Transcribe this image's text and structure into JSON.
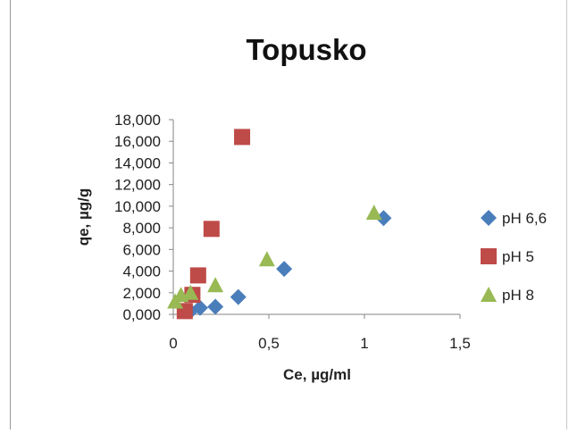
{
  "chart_data": {
    "type": "scatter",
    "title": "Topusko",
    "xlabel": "Ce, µg/ml",
    "ylabel": "qe, µg/g",
    "xlim": [
      0,
      1.5
    ],
    "ylim": [
      0,
      18000
    ],
    "x_ticks": [
      "0",
      "0,5",
      "1",
      "1,5"
    ],
    "y_ticks": [
      "0,000",
      "2,000",
      "4,000",
      "6,000",
      "8,000",
      "10,000",
      "12,000",
      "14,000",
      "16,000",
      "18,000"
    ],
    "grid": false,
    "legend_position": "right",
    "series": [
      {
        "name": "pH 6,6",
        "marker": "diamond",
        "color": "#4a7ebb",
        "points": [
          [
            0.09,
            300
          ],
          [
            0.14,
            600
          ],
          [
            0.22,
            700
          ],
          [
            0.34,
            1600
          ],
          [
            0.58,
            4200
          ],
          [
            1.1,
            8900
          ]
        ]
      },
      {
        "name": "pH 5",
        "marker": "square",
        "color": "#be4b48",
        "points": [
          [
            0.06,
            300
          ],
          [
            0.1,
            1800
          ],
          [
            0.13,
            3600
          ],
          [
            0.2,
            7900
          ],
          [
            0.36,
            16400
          ]
        ]
      },
      {
        "name": "pH 8",
        "marker": "triangle",
        "color": "#98b954",
        "points": [
          [
            0.01,
            1200
          ],
          [
            0.04,
            1800
          ],
          [
            0.09,
            2000
          ],
          [
            0.22,
            2700
          ],
          [
            0.49,
            5100
          ],
          [
            1.05,
            9400
          ]
        ]
      }
    ]
  }
}
